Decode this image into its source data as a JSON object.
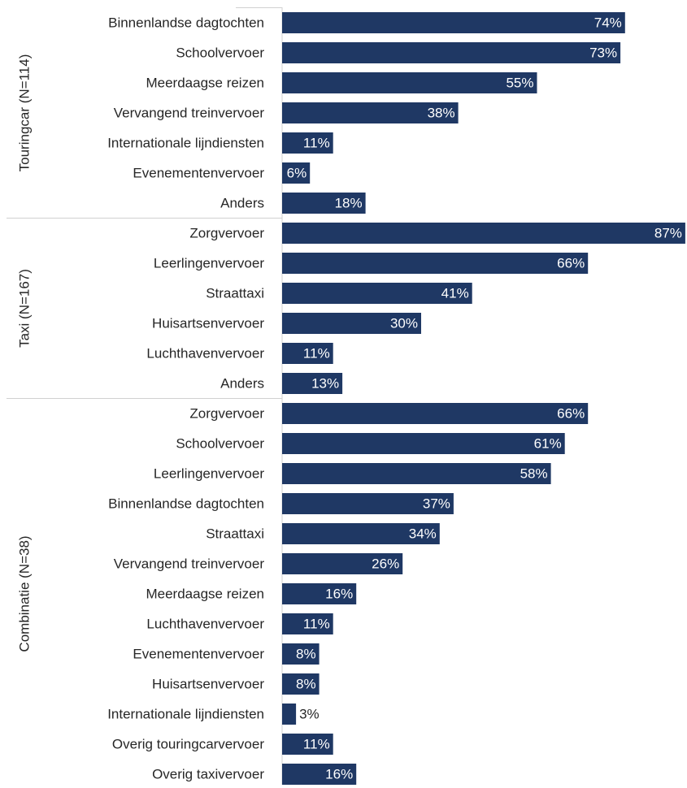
{
  "chart_data": {
    "type": "bar",
    "orientation": "horizontal",
    "color": "#1f3864",
    "groups": [
      {
        "name": "Touringcar (N=114)",
        "categories": [
          "Binnenlandse dagtochten",
          "Schoolvervoer",
          "Meerdaagse reizen",
          "Vervangend treinvervoer",
          "Internationale lijndiensten",
          "Evenementenvervoer",
          "Anders"
        ],
        "values": [
          74,
          73,
          55,
          38,
          11,
          6,
          18
        ],
        "value_labels": [
          "74%",
          "73%",
          "55%",
          "38%",
          "11%",
          "6%",
          "18%"
        ]
      },
      {
        "name": "Taxi (N=167)",
        "categories": [
          "Zorgvervoer",
          "Leerlingenvervoer",
          "Straattaxi",
          "Huisartsenvervoer",
          "Luchthavenvervoer",
          "Anders"
        ],
        "values": [
          87,
          66,
          41,
          30,
          11,
          13
        ],
        "value_labels": [
          "87%",
          "66%",
          "41%",
          "30%",
          "11%",
          "13%"
        ]
      },
      {
        "name": "Combinatie (N=38)",
        "categories": [
          "Zorgvervoer",
          "Schoolvervoer",
          "Leerlingenvervoer",
          "Binnenlandse dagtochten",
          "Straattaxi",
          "Vervangend treinvervoer",
          "Meerdaagse reizen",
          "Luchthavenvervoer",
          "Evenementenvervoer",
          "Huisartsenvervoer",
          "Internationale lijndiensten",
          "Overig touringcarvervoer",
          "Overig taxivervoer"
        ],
        "values": [
          66,
          61,
          58,
          37,
          34,
          26,
          16,
          11,
          8,
          8,
          3,
          11,
          16
        ],
        "value_labels": [
          "66%",
          "61%",
          "58%",
          "37%",
          "34%",
          "26%",
          "16%",
          "11%",
          "8%",
          "8%",
          "3%",
          "11%",
          "16%"
        ]
      }
    ]
  }
}
